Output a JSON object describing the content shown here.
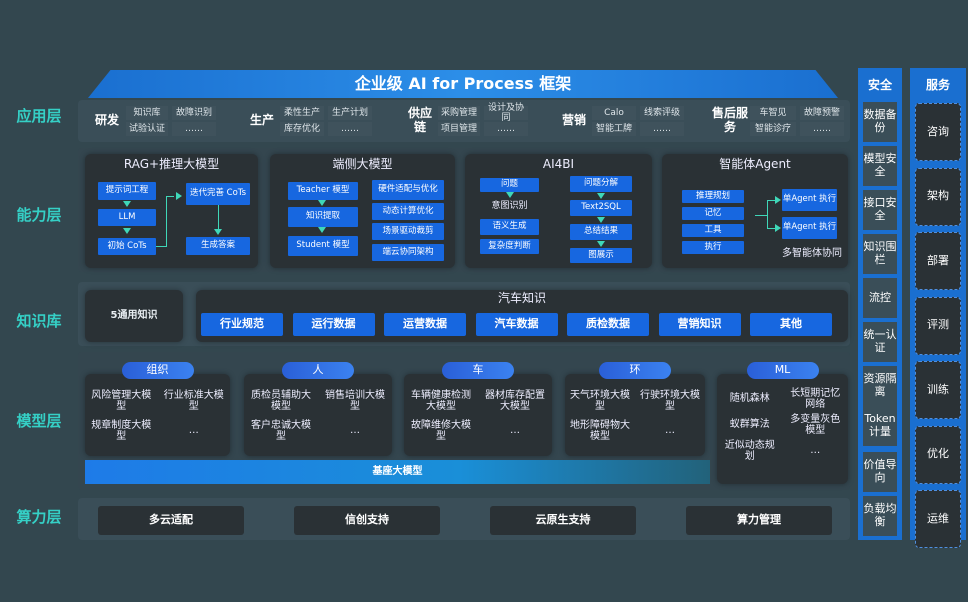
{
  "title": "企业级 AI for Process 框架",
  "layers": {
    "app": "应用层",
    "capability": "能力层",
    "knowledge": "知识库",
    "model": "模型层",
    "compute": "算力层"
  },
  "app_groups": [
    {
      "name": "研发",
      "items": [
        "知识库",
        "故障识别",
        "试验认证",
        "……"
      ]
    },
    {
      "name": "生产",
      "items": [
        "柔性生产",
        "生产计划",
        "库存优化",
        "……"
      ]
    },
    {
      "name": "供应链",
      "items": [
        "采购管理",
        "设计及协同",
        "项目管理",
        "……"
      ]
    },
    {
      "name": "营销",
      "items": [
        "Calo",
        "线索评级",
        "智能工牌",
        "……"
      ]
    },
    {
      "name": "售后服务",
      "items": [
        "车智见",
        "故障预警",
        "智能诊疗",
        "……"
      ]
    }
  ],
  "capability": {
    "rag": {
      "title": "RAG+推理大模型",
      "prompt": "提示词工程",
      "llm": "LLM",
      "init": "初始 CoTs",
      "iter": "迭代完善 CoTs",
      "answer": "生成答案"
    },
    "edge": {
      "title": "端侧大模型",
      "teacher": "Teacher 模型",
      "extract": "知识提取",
      "student": "Student 模型",
      "hw": "硬件适配与优化",
      "dyn": "动态计算优化",
      "scene": "场景驱动裁剪",
      "cloud": "端云协同架构"
    },
    "bi": {
      "title": "AI4BI",
      "question": "问题",
      "intent": "意图识别",
      "semantic": "语义生成",
      "complexity": "复杂度判断",
      "decompose": "问题分解",
      "sql": "Text2SQL",
      "summary": "总结结果",
      "chart": "图展示"
    },
    "agent": {
      "title": "智能体Agent",
      "plan": "推理规划",
      "memory": "记忆",
      "tool": "工具",
      "exec": "执行",
      "single1": "单Agent 执行",
      "single2": "单Agent 执行",
      "multi": "多智能体协同"
    }
  },
  "knowledge": {
    "general": "5通用知识",
    "auto_title": "汽车知识",
    "chips": [
      "行业规范",
      "运行数据",
      "运营数据",
      "汽车数据",
      "质检数据",
      "营销知识",
      "其他"
    ]
  },
  "model": {
    "groups": [
      {
        "name": "组织",
        "items": [
          "风险管理大模型",
          "行业标准大模型",
          "规章制度大模型",
          "…"
        ]
      },
      {
        "name": "人",
        "items": [
          "质检员辅助大模型",
          "销售培训大模型",
          "客户忠诚大模型",
          "…"
        ]
      },
      {
        "name": "车",
        "items": [
          "车辆健康检测大模型",
          "器材库存配置大模型",
          "故障维修大模型",
          "…"
        ]
      },
      {
        "name": "环",
        "items": [
          "天气环境大模型",
          "行驶环境大模型",
          "地形障碍物大模型",
          "…"
        ]
      },
      {
        "name": "ML",
        "items": [
          "随机森林",
          "长短期记忆网络",
          "蚁群算法",
          "多变量灰色模型",
          "近似动态规划",
          "…"
        ]
      }
    ],
    "base": "基座大模型"
  },
  "compute": [
    "多云适配",
    "信创支持",
    "云原生支持",
    "算力管理"
  ],
  "security": {
    "title": "安全",
    "items": [
      "数据备份",
      "模型安全",
      "接口安全",
      "知识围栏",
      "流控",
      "统一认证",
      "资源隔离",
      "Token计量",
      "价值导向",
      "负载均衡"
    ]
  },
  "service": {
    "title": "服务",
    "items": [
      "咨询",
      "架构",
      "部署",
      "评测",
      "训练",
      "优化",
      "运维"
    ]
  },
  "colors": {
    "background": "#33474f",
    "accent_blue": "#1767e0",
    "layer_label": "#35d0c6",
    "panel": "#2a3135"
  }
}
